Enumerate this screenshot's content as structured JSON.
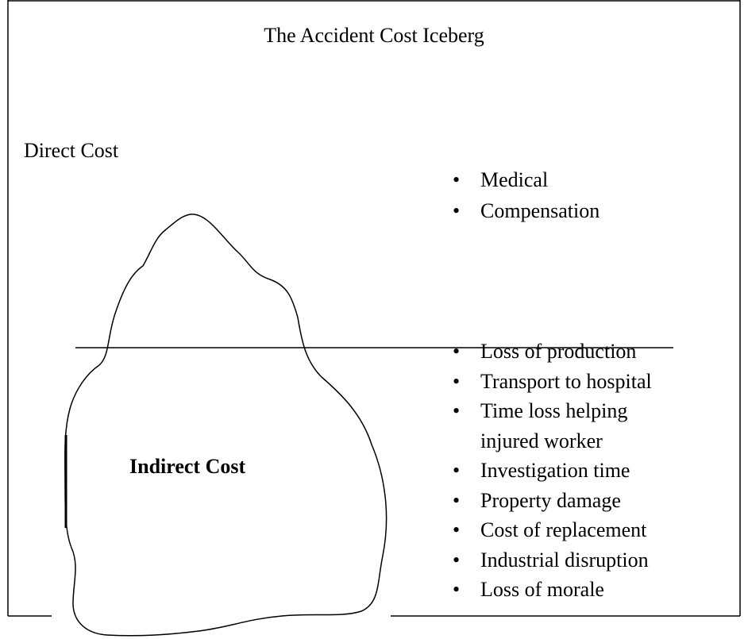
{
  "title": "The Accident Cost Iceberg",
  "direct_cost": {
    "label": "Direct Cost",
    "items": [
      "Medical",
      "Compensation"
    ]
  },
  "indirect_cost": {
    "label": "Indirect Cost",
    "items": [
      "Loss of production",
      "Transport to hospital",
      "Time loss helping injured worker",
      "Investigation time",
      "Property damage",
      "Cost of replacement",
      "Industrial disruption",
      "Loss of morale"
    ]
  }
}
